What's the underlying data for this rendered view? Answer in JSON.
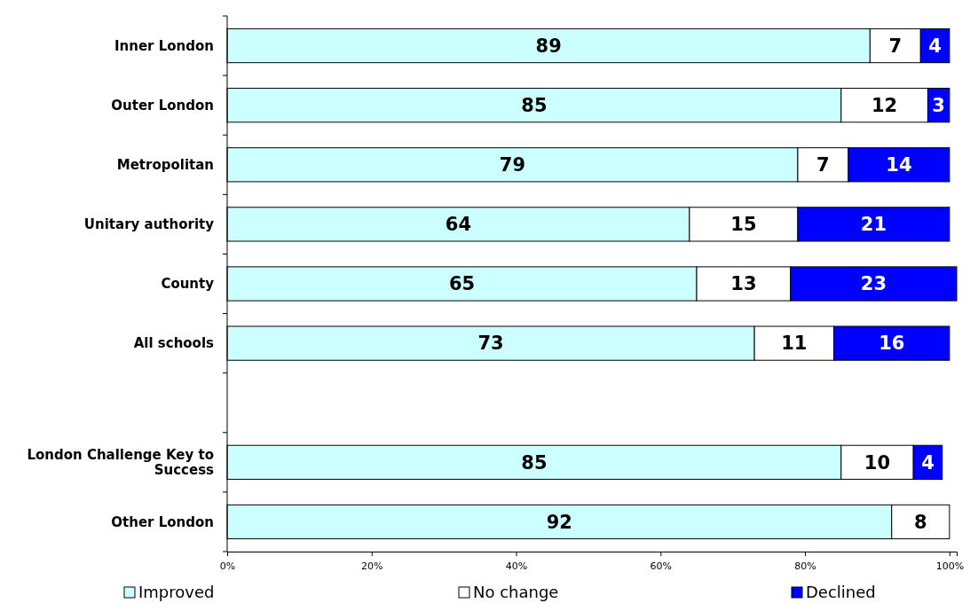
{
  "chart_data": {
    "type": "bar",
    "orientation": "horizontal",
    "stacked": true,
    "data_labels": true,
    "legend": "bottom",
    "grid": false,
    "categories": [
      "Inner London",
      "Outer London",
      "Metropolitan",
      "Unitary authority",
      "County",
      "All schools",
      null,
      "London Challenge Key to Success",
      "Other London"
    ],
    "series": [
      {
        "name": "Improved",
        "color": "#ccffff",
        "values": [
          89,
          85,
          79,
          64,
          65,
          73,
          null,
          85,
          92
        ]
      },
      {
        "name": "No change",
        "color": "#ffffff",
        "values": [
          7,
          12,
          7,
          15,
          13,
          11,
          null,
          10,
          8
        ]
      },
      {
        "name": "Declined",
        "color": "#0000ff",
        "values": [
          4,
          3,
          14,
          21,
          23,
          16,
          null,
          4,
          null
        ]
      }
    ],
    "xlim": [
      0,
      101
    ],
    "xticks": [
      {
        "value": 0,
        "label": "0%"
      },
      {
        "value": 20,
        "label": "20%"
      },
      {
        "value": 40,
        "label": "40%"
      },
      {
        "value": 60,
        "label": "60%"
      },
      {
        "value": 80,
        "label": "80%"
      },
      {
        "value": 100,
        "label": "100%"
      }
    ]
  }
}
